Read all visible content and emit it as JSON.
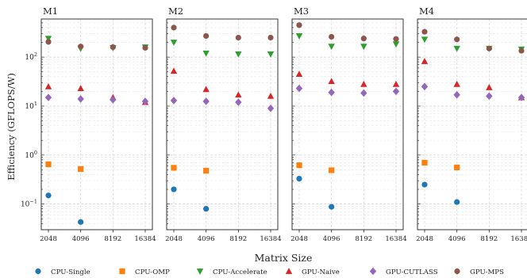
{
  "chart_data": {
    "type": "scatter",
    "xlabel": "Matrix Size",
    "ylabel": "Efficiency (GFLOPS/W)",
    "y_scale": "log",
    "ylim": [
      0.03,
      600
    ],
    "grid": true,
    "legend_position": "bottom",
    "x_categories": [
      "2048",
      "4096",
      "8192",
      "16384"
    ],
    "y_ticks": [
      {
        "value": 0.1,
        "base": "10",
        "exp": "−1"
      },
      {
        "value": 1,
        "base": "10",
        "exp": "0"
      },
      {
        "value": 10,
        "base": "10",
        "exp": "1"
      },
      {
        "value": 100,
        "base": "10",
        "exp": "2"
      }
    ],
    "series_styles": [
      {
        "name": "CPU-Single",
        "color": "#1f77b4",
        "marker": "circle"
      },
      {
        "name": "CPU-OMP",
        "color": "#ff7f0e",
        "marker": "square"
      },
      {
        "name": "CPU-Accelerate",
        "color": "#2ca02c",
        "marker": "triangle-down"
      },
      {
        "name": "GPU-Naive",
        "color": "#d62728",
        "marker": "triangle-up"
      },
      {
        "name": "GPU-CUTLASS",
        "color": "#9467bd",
        "marker": "diamond"
      },
      {
        "name": "GPU-MPS",
        "color": "#8c564b",
        "marker": "circle"
      }
    ],
    "panels": [
      {
        "title": "M1",
        "series": [
          [
            0.15,
            0.043,
            null,
            null
          ],
          [
            0.65,
            0.52,
            null,
            null
          ],
          [
            240,
            150,
            155,
            160
          ],
          [
            25,
            23,
            15,
            12
          ],
          [
            15,
            14,
            13.5,
            12.5
          ],
          [
            205,
            165,
            160,
            155
          ]
        ]
      },
      {
        "title": "M2",
        "series": [
          [
            0.2,
            0.08,
            null,
            null
          ],
          [
            0.55,
            0.48,
            null,
            null
          ],
          [
            200,
            120,
            115,
            115
          ],
          [
            52,
            22,
            17,
            16
          ],
          [
            13,
            12.5,
            12,
            9
          ],
          [
            400,
            270,
            250,
            250
          ]
        ]
      },
      {
        "title": "M3",
        "series": [
          [
            0.33,
            0.088,
            null,
            null
          ],
          [
            0.62,
            0.49,
            null,
            null
          ],
          [
            270,
            165,
            165,
            185
          ],
          [
            45,
            32,
            28,
            28
          ],
          [
            23,
            19,
            18.5,
            20
          ],
          [
            450,
            260,
            240,
            235
          ]
        ]
      },
      {
        "title": "M4",
        "series": [
          [
            0.25,
            0.11,
            null,
            null
          ],
          [
            0.7,
            0.56,
            null,
            null
          ],
          [
            230,
            150,
            150,
            145
          ],
          [
            82,
            28,
            24,
            15
          ],
          [
            25,
            17,
            16,
            15
          ],
          [
            330,
            230,
            150,
            135
          ]
        ]
      }
    ]
  }
}
